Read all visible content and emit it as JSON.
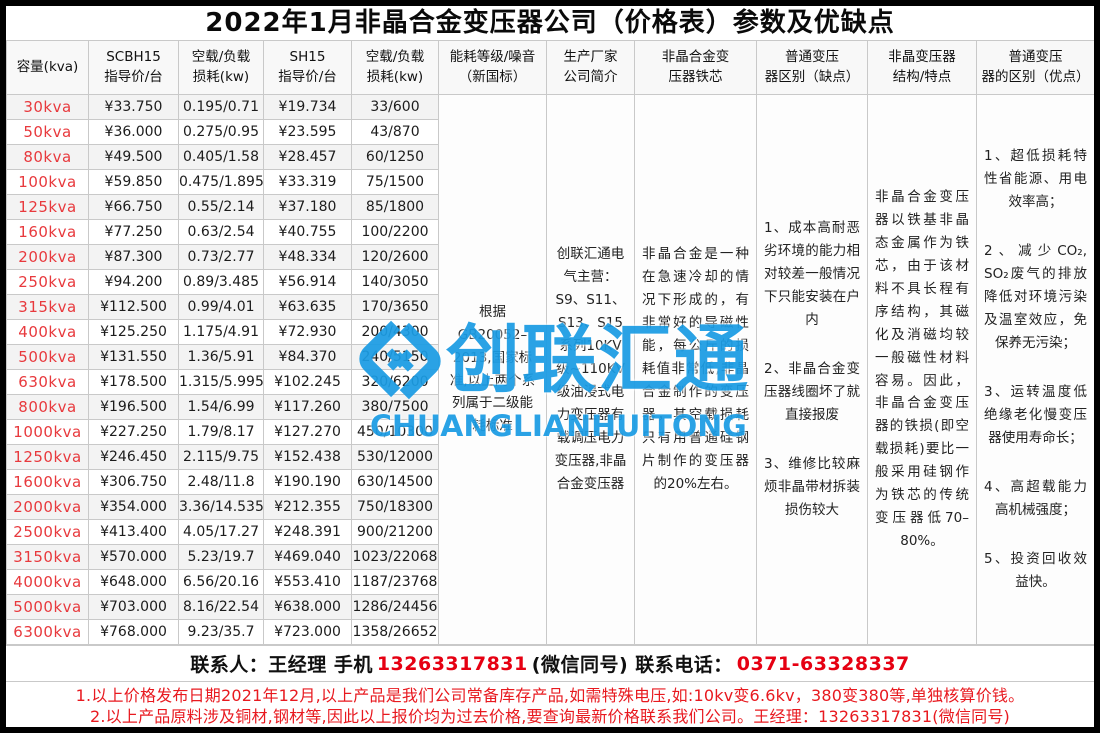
{
  "title": "2022年1月非晶合金变压器公司（价格表）参数及优缺点",
  "colors": {
    "capacity_red": "#e8393d",
    "note_red": "#e8191f",
    "phone_red": "#e60012",
    "watermark_blue": "#1b9ce4"
  },
  "table": {
    "headers": [
      [
        "容量(kva)"
      ],
      [
        "SCBH15",
        "指导价/台"
      ],
      [
        "空载/负载",
        "损耗(kw)"
      ],
      [
        "SH15",
        "指导价/台"
      ],
      [
        "空载/负载",
        "损耗(kw)"
      ],
      [
        "能耗等级/噪音",
        "（新国标）"
      ],
      [
        "生产厂家",
        "公司简介"
      ],
      [
        "非晶合金变",
        "压器铁芯"
      ],
      [
        "普通变压",
        "器区别（缺点）"
      ],
      [
        "非晶变压器",
        "结构/特点"
      ],
      [
        "普通变压",
        "器的区别（优点）"
      ]
    ],
    "rows": [
      {
        "capacity": "30kva",
        "scbh15_price": "¥33.750",
        "scbh15_loss": "0.195/0.71",
        "sh15_price": "¥19.734",
        "sh15_loss": "33/600"
      },
      {
        "capacity": "50kva",
        "scbh15_price": "¥36.000",
        "scbh15_loss": "0.275/0.95",
        "sh15_price": "¥23.595",
        "sh15_loss": "43/870"
      },
      {
        "capacity": "80kva",
        "scbh15_price": "¥49.500",
        "scbh15_loss": "0.405/1.58",
        "sh15_price": "¥28.457",
        "sh15_loss": "60/1250"
      },
      {
        "capacity": "100kva",
        "scbh15_price": "¥59.850",
        "scbh15_loss": "0.475/1.895",
        "sh15_price": "¥33.319",
        "sh15_loss": "75/1500"
      },
      {
        "capacity": "125kva",
        "scbh15_price": "¥66.750",
        "scbh15_loss": "0.55/2.14",
        "sh15_price": "¥37.180",
        "sh15_loss": "85/1800"
      },
      {
        "capacity": "160kva",
        "scbh15_price": "¥77.250",
        "scbh15_loss": "0.63/2.54",
        "sh15_price": "¥40.755",
        "sh15_loss": "100/2200"
      },
      {
        "capacity": "200kva",
        "scbh15_price": "¥87.300",
        "scbh15_loss": "0.73/2.77",
        "sh15_price": "¥48.334",
        "sh15_loss": "120/2600"
      },
      {
        "capacity": "250kva",
        "scbh15_price": "¥94.200",
        "scbh15_loss": "0.89/3.485",
        "sh15_price": "¥56.914",
        "sh15_loss": "140/3050"
      },
      {
        "capacity": "315kva",
        "scbh15_price": "¥112.500",
        "scbh15_loss": "0.99/4.01",
        "sh15_price": "¥63.635",
        "sh15_loss": "170/3650"
      },
      {
        "capacity": "400kva",
        "scbh15_price": "¥125.250",
        "scbh15_loss": "1.175/4.91",
        "sh15_price": "¥72.930",
        "sh15_loss": "200/4300"
      },
      {
        "capacity": "500kva",
        "scbh15_price": "¥131.550",
        "scbh15_loss": "1.36/5.91",
        "sh15_price": "¥84.370",
        "sh15_loss": "240/5150"
      },
      {
        "capacity": "630kva",
        "scbh15_price": "¥178.500",
        "scbh15_loss": "1.315/5.995",
        "sh15_price": "¥102.245",
        "sh15_loss": "320/6200"
      },
      {
        "capacity": "800kva",
        "scbh15_price": "¥196.500",
        "scbh15_loss": "1.54/6.99",
        "sh15_price": "¥117.260",
        "sh15_loss": "380/7500"
      },
      {
        "capacity": "1000kva",
        "scbh15_price": "¥227.250",
        "scbh15_loss": "1.79/8.17",
        "sh15_price": "¥127.270",
        "sh15_loss": "450/10300"
      },
      {
        "capacity": "1250kva",
        "scbh15_price": "¥246.450",
        "scbh15_loss": "2.115/9.75",
        "sh15_price": "¥152.438",
        "sh15_loss": "530/12000"
      },
      {
        "capacity": "1600kva",
        "scbh15_price": "¥306.750",
        "scbh15_loss": "2.48/11.8",
        "sh15_price": "¥190.190",
        "sh15_loss": "630/14500"
      },
      {
        "capacity": "2000kva",
        "scbh15_price": "¥354.000",
        "scbh15_loss": "3.36/14.535",
        "sh15_price": "¥212.355",
        "sh15_loss": "750/18300"
      },
      {
        "capacity": "2500kva",
        "scbh15_price": "¥413.400",
        "scbh15_loss": "4.05/17.27",
        "sh15_price": "¥248.391",
        "sh15_loss": "900/21200"
      },
      {
        "capacity": "3150kva",
        "scbh15_price": "¥570.000",
        "scbh15_loss": "5.23/19.7",
        "sh15_price": "¥469.040",
        "sh15_loss": "1023/22068"
      },
      {
        "capacity": "4000kva",
        "scbh15_price": "¥648.000",
        "scbh15_loss": "6.56/20.16",
        "sh15_price": "¥553.410",
        "sh15_loss": "1187/23768"
      },
      {
        "capacity": "5000kva",
        "scbh15_price": "¥703.000",
        "scbh15_loss": "8.16/22.54",
        "sh15_price": "¥638.000",
        "sh15_loss": "1286/24456"
      },
      {
        "capacity": "6300kva",
        "scbh15_price": "¥768.000",
        "scbh15_loss": "9.23/35.7",
        "sh15_price": "¥723.000",
        "sh15_loss": "1358/26652"
      }
    ],
    "merged": {
      "energy_standard": "根据GB20052–2013,国家标准,以上两个系列属于二级能耗标准",
      "manufacturer": "创联汇通电气主营：S9、S11、S13、S15系列10KV级~110KV级油浸式电力变压器有载调压电力变压器,非晶合金变压器",
      "core": "非晶合金是一种在急速冷却的情况下形成的，有非常好的导磁性能，每公斤的损耗值非常低,非晶合金制作的变压器，其空载损耗只有用普通硅钢片制作的变压器的20%左右。",
      "disadvantages": [
        "1、成本高耐恶劣环境的能力相对较差一般情况下只能安装在户内",
        "2、非晶合金变压器线圈坏了就直接报废",
        "3、维修比较麻烦非晶带材拆装损伤较大"
      ],
      "structure": "非晶合金变压器以铁基非晶态金属作为铁芯，由于该材料不具长程有序结构，其磁化及消磁均较一般磁性材料容易。因此，非晶合金变压器的铁损(即空载损耗)要比一般采用硅钢作为铁芯的传统变压器低70–80%。",
      "advantages": [
        "1、超低损耗特性省能源、用电效率高；",
        "2、减少CO₂, SO₂废气的排放降低对环境污染及温室效应，免保养无污染；",
        "3、运转温度低绝缘老化慢变压器使用寿命长；",
        "4、高超载能力高机械强度；",
        "5、投资回收效益快。"
      ]
    }
  },
  "watermark": {
    "text": "创联汇通",
    "subtext": "CHUANGLIANHUITONG"
  },
  "footer": {
    "contact_label1": "联系人：王经理  手机",
    "contact_phone1": "13263317831",
    "contact_label2": " (微信同号) 联系电话：",
    "contact_phone2": "0371-63328337",
    "note1": "1.以上价格发布日期2021年12月,以上产品是我们公司常备库存产品,如需特殊电压,如:10kv变6.6kv，380变380等,单独核算价钱。",
    "note2": "2.以上产品原料涉及铜材,钢材等,因此以上报价均为过去价格,要查询最新价格联系我们公司。王经理：13263317831(微信同号)"
  }
}
